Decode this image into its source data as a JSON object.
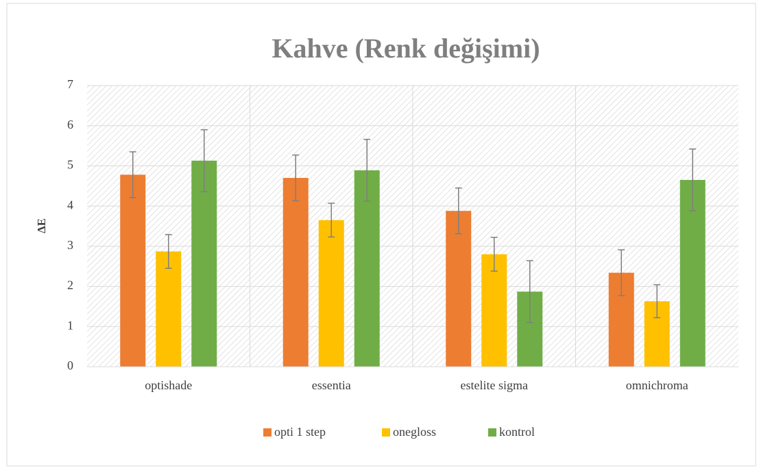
{
  "chart_data": {
    "type": "bar",
    "title": "Kahve (Renk değişimi)",
    "y_label": "ΔE",
    "categories": [
      "optishade",
      "essentia",
      "estelite sigma",
      "omnichroma"
    ],
    "series": [
      {
        "name": "opti 1 step",
        "color": "#ed7d31",
        "values": [
          4.78,
          4.7,
          3.88,
          2.34
        ],
        "errors": [
          0.57,
          0.57,
          0.57,
          0.57
        ]
      },
      {
        "name": "onegloss",
        "color": "#ffc000",
        "values": [
          2.87,
          3.65,
          2.8,
          1.63
        ],
        "errors": [
          0.42,
          0.42,
          0.42,
          0.41
        ]
      },
      {
        "name": "kontrol",
        "color": "#70ad47",
        "values": [
          5.13,
          4.89,
          1.87,
          4.65
        ],
        "errors": [
          0.77,
          0.77,
          0.77,
          0.77
        ]
      }
    ],
    "ylim": [
      0,
      7
    ],
    "yticks": [
      0,
      1,
      2,
      3,
      4,
      5,
      6,
      7
    ],
    "grid": true,
    "legend": "bottom"
  }
}
